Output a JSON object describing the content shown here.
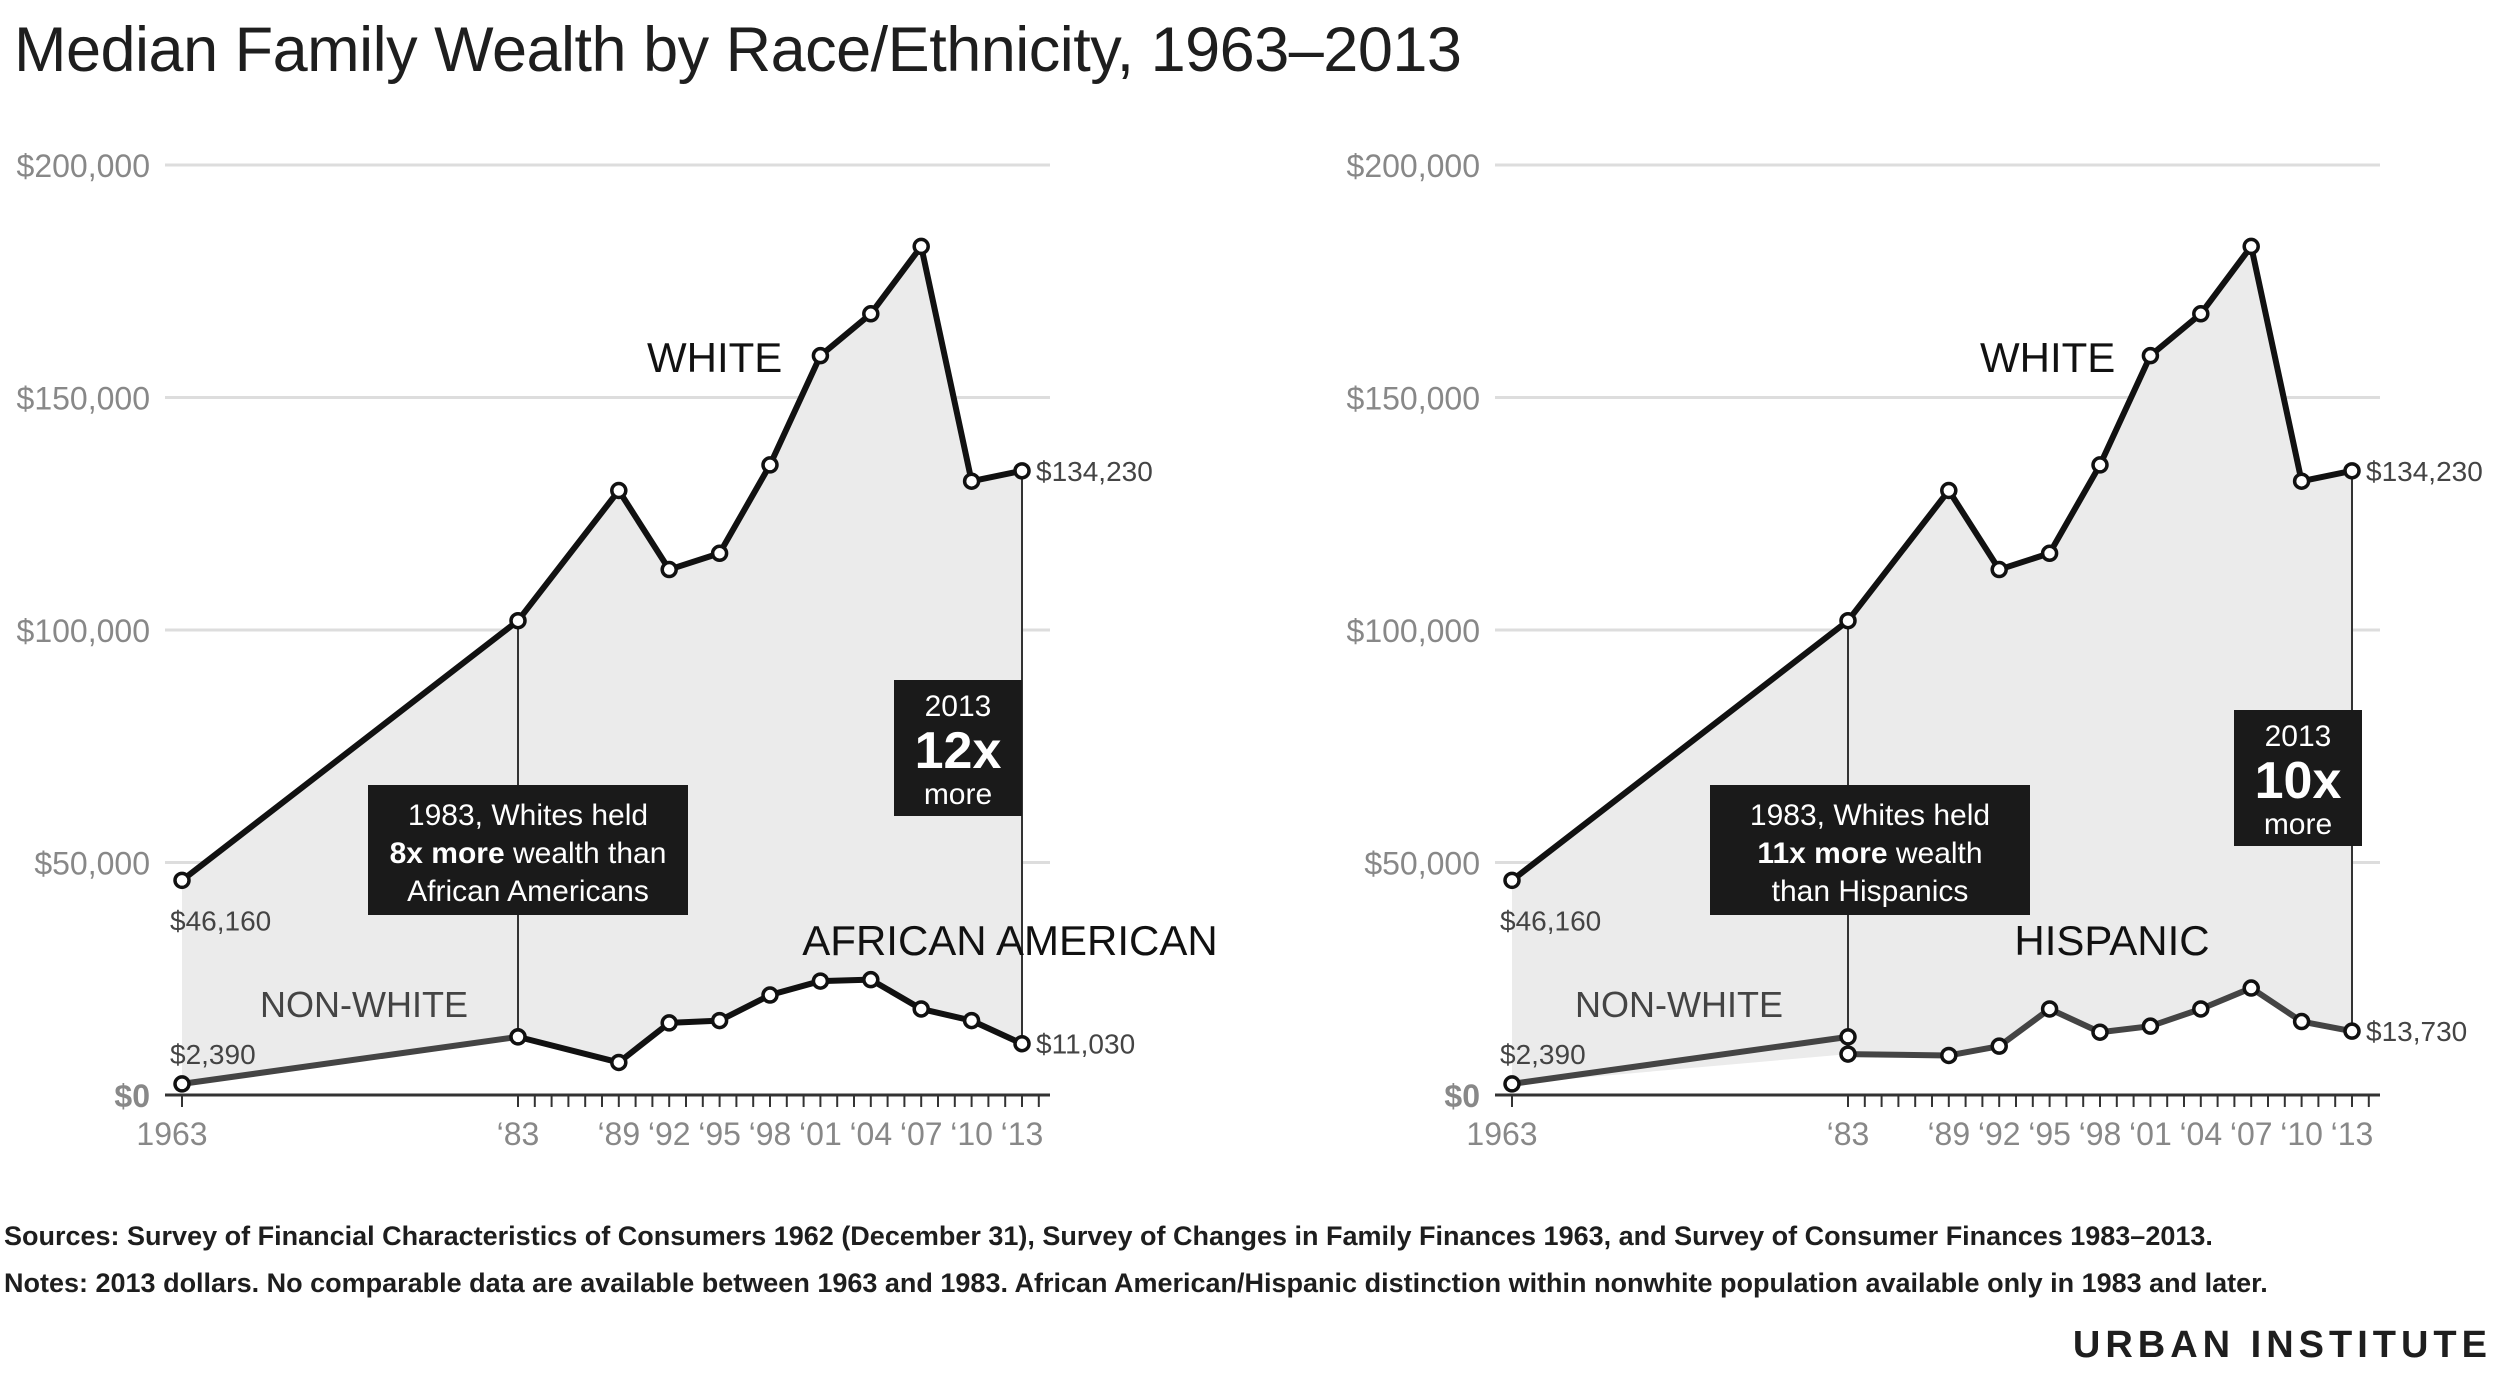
{
  "title": "Median Family Wealth by Race/Ethnicity, 1963–2013",
  "sources": "Sources: Survey of Financial Characteristics of Consumers 1962 (December 31), Survey of Changes in Family Finances 1963, and Survey of Consumer Finances 1983–2013.",
  "notes": "Notes: 2013 dollars. No comparable data are available between 1963 and 1983. African American/Hispanic distinction within nonwhite population available only in 1983 and later.",
  "brand": "URBAN INSTITUTE",
  "colors": {
    "line": "#111111",
    "nonwhite": "#444444",
    "fill": "#ebebeb",
    "grid": "#dddddd",
    "box": "#1a1a1a",
    "axis_text": "#888888"
  },
  "chart_data": [
    {
      "type": "line",
      "x": [
        1963,
        1983,
        1989,
        1992,
        1995,
        1998,
        2001,
        2004,
        2007,
        2010,
        2013
      ],
      "x_tick_labels": [
        "1963",
        "‘83",
        "‘89",
        "‘92",
        "‘95",
        "‘98",
        "‘01",
        "‘04",
        "‘07",
        "‘10",
        "‘13"
      ],
      "y_tick_labels": [
        "$0",
        "$50,000",
        "$100,000",
        "$150,000",
        "$200,000"
      ],
      "y_ticks": [
        0,
        50000,
        100000,
        150000,
        200000
      ],
      "ylim": [
        0,
        200000
      ],
      "grid": true,
      "series": [
        {
          "name": "WHITE",
          "x": [
            1963,
            1983,
            1989,
            1992,
            1995,
            1998,
            2001,
            2004,
            2007,
            2010,
            2013
          ],
          "values": [
            46160,
            102000,
            130000,
            113000,
            116500,
            135500,
            159000,
            168000,
            182500,
            132000,
            134230
          ]
        },
        {
          "name": "NON-WHITE",
          "x": [
            1963,
            1983
          ],
          "values": [
            2390,
            12500
          ]
        },
        {
          "name": "AFRICAN AMERICAN",
          "x": [
            1983,
            1989,
            1992,
            1995,
            1998,
            2001,
            2004,
            2007,
            2010,
            2013
          ],
          "values": [
            12500,
            7000,
            15500,
            16000,
            21500,
            24500,
            24800,
            18500,
            16000,
            11030
          ]
        }
      ],
      "value_labels": {
        "white_start": "$46,160",
        "white_end": "$134,230",
        "nonwhite_start": "$2,390",
        "minority_end": "$11,030"
      },
      "annotation_1983": [
        "1983, Whites held",
        "8x more",
        " wealth than",
        "African Americans"
      ],
      "annotation_2013": [
        "2013",
        "12x",
        "more"
      ]
    },
    {
      "type": "line",
      "x": [
        1963,
        1983,
        1989,
        1992,
        1995,
        1998,
        2001,
        2004,
        2007,
        2010,
        2013
      ],
      "x_tick_labels": [
        "1963",
        "‘83",
        "‘89",
        "‘92",
        "‘95",
        "‘98",
        "‘01",
        "‘04",
        "‘07",
        "‘10",
        "‘13"
      ],
      "y_tick_labels": [
        "$0",
        "$50,000",
        "$100,000",
        "$150,000",
        "$200,000"
      ],
      "y_ticks": [
        0,
        50000,
        100000,
        150000,
        200000
      ],
      "ylim": [
        0,
        200000
      ],
      "grid": true,
      "series": [
        {
          "name": "WHITE",
          "x": [
            1963,
            1983,
            1989,
            1992,
            1995,
            1998,
            2001,
            2004,
            2007,
            2010,
            2013
          ],
          "values": [
            46160,
            102000,
            130000,
            113000,
            116500,
            135500,
            159000,
            168000,
            182500,
            132000,
            134230
          ]
        },
        {
          "name": "NON-WHITE",
          "x": [
            1963,
            1983
          ],
          "values": [
            2390,
            12500
          ]
        },
        {
          "name": "HISPANIC",
          "x": [
            1983,
            1989,
            1992,
            1995,
            1998,
            2001,
            2004,
            2007,
            2010,
            2013
          ],
          "values": [
            8800,
            8500,
            10500,
            18500,
            13500,
            14800,
            18500,
            23000,
            15800,
            13730
          ]
        }
      ],
      "value_labels": {
        "white_start": "$46,160",
        "white_end": "$134,230",
        "nonwhite_start": "$2,390",
        "minority_end": "$13,730"
      },
      "annotation_1983": [
        "1983, Whites held",
        "11x more",
        " wealth",
        "than Hispanics"
      ],
      "annotation_2013": [
        "2013",
        "10x",
        "more"
      ]
    }
  ]
}
